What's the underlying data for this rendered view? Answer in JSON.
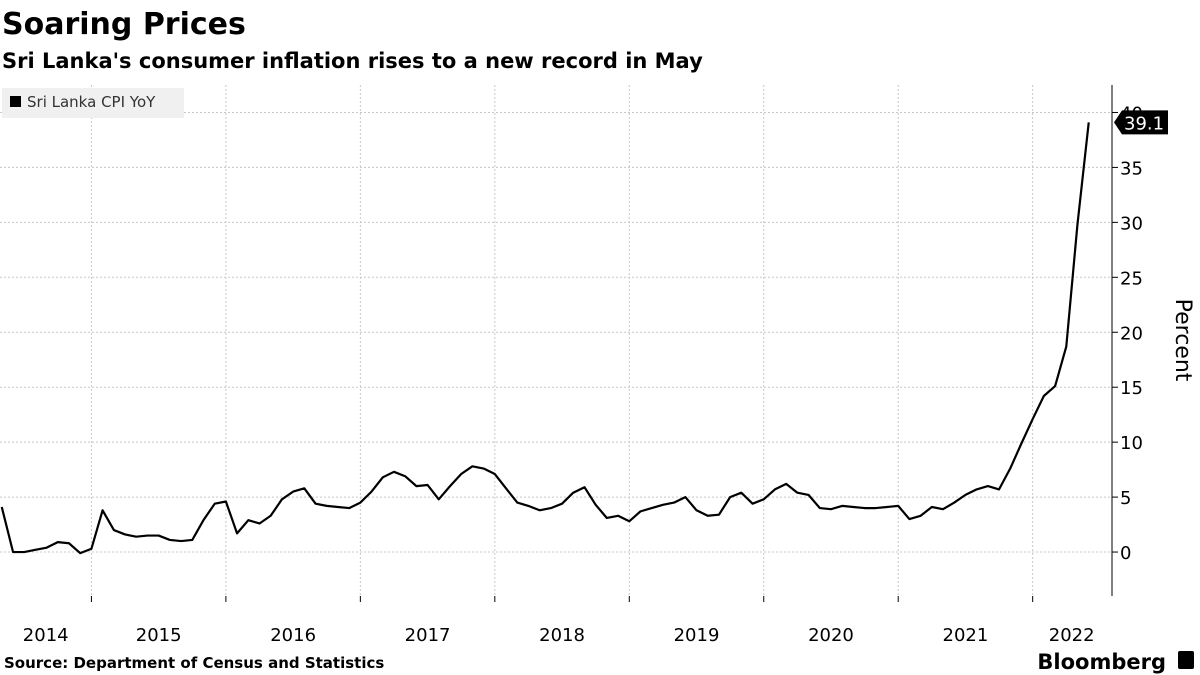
{
  "chart_data": {
    "type": "line",
    "title": "Soaring Prices",
    "subtitle": "Sri Lanka's consumer inflation rises to a new record in May",
    "source": "Source: Department of Census and Statistics",
    "brand": "Bloomberg",
    "y_label": "Percent",
    "x": [
      2014.333,
      2014.417,
      2014.5,
      2014.583,
      2014.667,
      2014.75,
      2014.833,
      2014.917,
      2015,
      2015.083,
      2015.167,
      2015.25,
      2015.333,
      2015.417,
      2015.5,
      2015.583,
      2015.667,
      2015.75,
      2015.833,
      2015.917,
      2016,
      2016.083,
      2016.167,
      2016.25,
      2016.333,
      2016.417,
      2016.5,
      2016.583,
      2016.667,
      2016.75,
      2016.833,
      2016.917,
      2017,
      2017.083,
      2017.167,
      2017.25,
      2017.333,
      2017.417,
      2017.5,
      2017.583,
      2017.667,
      2017.75,
      2017.833,
      2017.917,
      2018,
      2018.083,
      2018.167,
      2018.25,
      2018.333,
      2018.417,
      2018.5,
      2018.583,
      2018.667,
      2018.75,
      2018.833,
      2018.917,
      2019,
      2019.083,
      2019.167,
      2019.25,
      2019.333,
      2019.417,
      2019.5,
      2019.583,
      2019.667,
      2019.75,
      2019.833,
      2019.917,
      2020,
      2020.083,
      2020.167,
      2020.25,
      2020.333,
      2020.417,
      2020.5,
      2020.583,
      2020.667,
      2020.75,
      2020.833,
      2020.917,
      2021,
      2021.083,
      2021.167,
      2021.25,
      2021.333,
      2021.417,
      2021.5,
      2021.583,
      2021.667,
      2021.75,
      2021.833,
      2021.917,
      2022,
      2022.083,
      2022.167,
      2022.25,
      2022.333,
      2022.417
    ],
    "series": [
      {
        "name": "Sri Lanka CPI YoY",
        "color": "#000000",
        "values": [
          4.1,
          0.0,
          0.0,
          0.2,
          0.4,
          0.9,
          0.8,
          -0.1,
          0.3,
          3.8,
          2.0,
          1.6,
          1.4,
          1.5,
          1.5,
          1.1,
          1.0,
          1.1,
          2.9,
          4.4,
          4.6,
          1.7,
          2.9,
          2.6,
          3.3,
          4.8,
          5.5,
          5.8,
          4.4,
          4.2,
          4.1,
          4.0,
          4.5,
          5.5,
          6.8,
          7.3,
          6.9,
          6.0,
          6.1,
          4.8,
          6.0,
          7.1,
          7.8,
          7.6,
          7.1,
          5.8,
          4.5,
          4.2,
          3.8,
          4.0,
          4.4,
          5.4,
          5.9,
          4.3,
          3.1,
          3.3,
          2.8,
          3.7,
          4.0,
          4.3,
          4.5,
          5.0,
          3.8,
          3.3,
          3.4,
          5.0,
          5.4,
          4.4,
          4.8,
          5.7,
          6.2,
          5.4,
          5.2,
          4.0,
          3.9,
          4.2,
          4.1,
          4.0,
          4.0,
          4.1,
          4.2,
          3.0,
          3.3,
          4.1,
          3.9,
          4.5,
          5.2,
          5.7,
          6.0,
          5.7,
          7.6,
          9.9,
          12.1,
          14.2,
          15.1,
          18.7,
          29.8,
          39.1
        ]
      }
    ],
    "xlim": [
      2014.32,
      2022.59
    ],
    "xticks": [
      {
        "value": 2014.66,
        "label": "2014"
      },
      {
        "value": 2015.5,
        "label": "2015"
      },
      {
        "value": 2016.5,
        "label": "2016"
      },
      {
        "value": 2017.5,
        "label": "2017"
      },
      {
        "value": 2018.5,
        "label": "2018"
      },
      {
        "value": 2019.5,
        "label": "2019"
      },
      {
        "value": 2020.5,
        "label": "2020"
      },
      {
        "value": 2021.5,
        "label": "2021"
      },
      {
        "value": 2022.29,
        "label": "2022"
      }
    ],
    "xgrid": [
      2015,
      2016,
      2017,
      2018,
      2019,
      2020,
      2021,
      2022
    ],
    "ylim": [
      -4,
      42.5
    ],
    "yticks": [
      0,
      5,
      10,
      15,
      20,
      25,
      30,
      35,
      40
    ],
    "grid": true,
    "legend": "top-left"
  }
}
